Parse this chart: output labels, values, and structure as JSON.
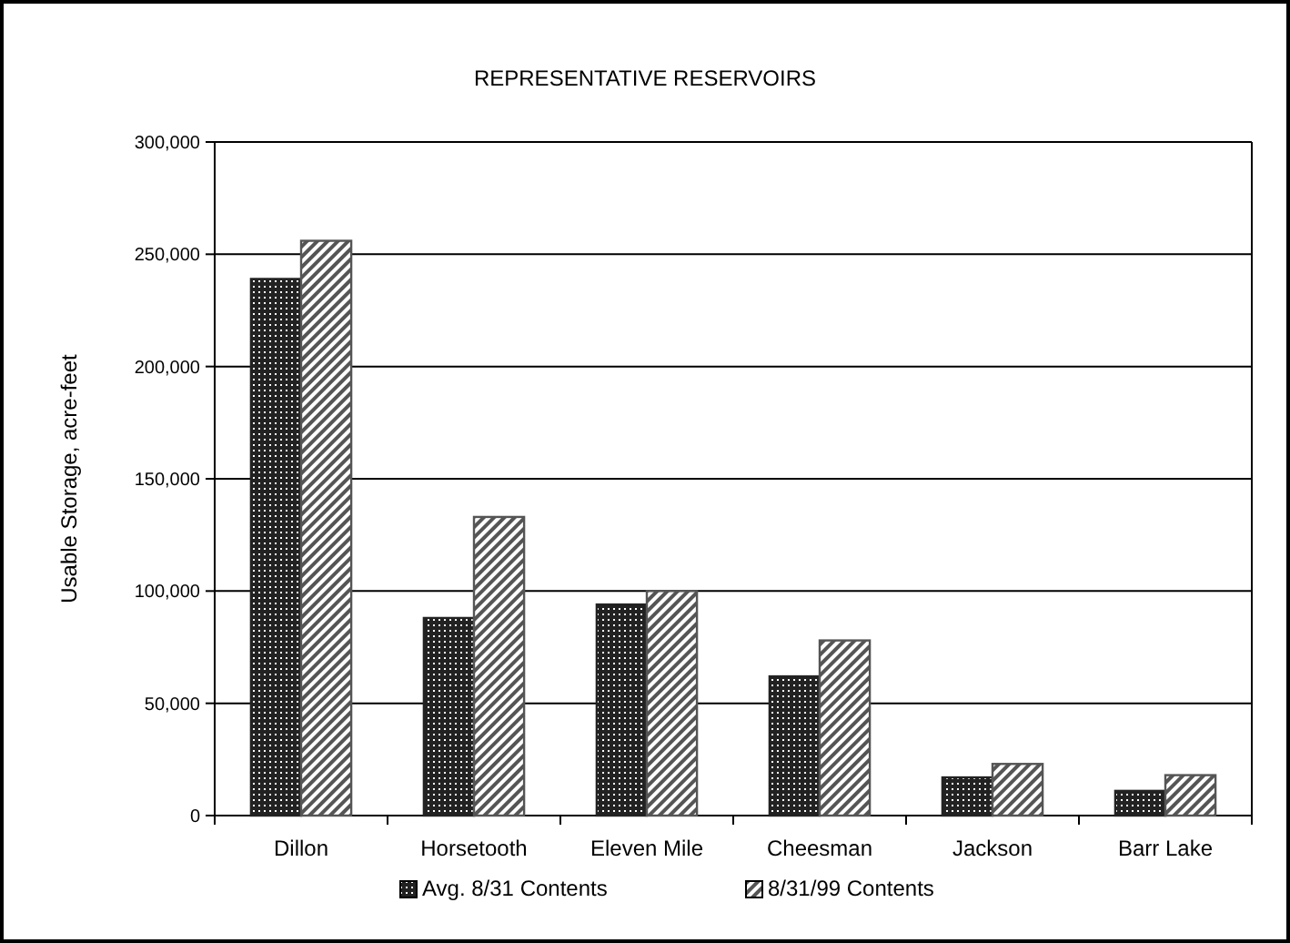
{
  "chart_data": {
    "type": "bar",
    "title": "REPRESENTATIVE RESERVOIRS",
    "ylabel": "Usable Storage, acre-feet",
    "categories": [
      "Dillon",
      "Horsetooth",
      "Eleven Mile",
      "Cheesman",
      "Jackson",
      "Barr Lake"
    ],
    "series": [
      {
        "name": "Avg. 8/31 Contents",
        "color": "#222222",
        "values": [
          239000,
          88000,
          94000,
          62000,
          17000,
          11000
        ]
      },
      {
        "name": "8/31/99 Contents",
        "color": "#555555",
        "values": [
          256000,
          133000,
          100000,
          78000,
          23000,
          18000
        ]
      }
    ],
    "ylim": [
      0,
      300000
    ],
    "yticks": [
      {
        "value": 0,
        "label": "0"
      },
      {
        "value": 50000,
        "label": "50,000"
      },
      {
        "value": 100000,
        "label": "100,000"
      },
      {
        "value": 150000,
        "label": "150,000"
      },
      {
        "value": 200000,
        "label": "200,000"
      },
      {
        "value": 250000,
        "label": "250,000"
      },
      {
        "value": 300000,
        "label": "300,000"
      }
    ],
    "grid": "y",
    "legend": "bottom"
  }
}
